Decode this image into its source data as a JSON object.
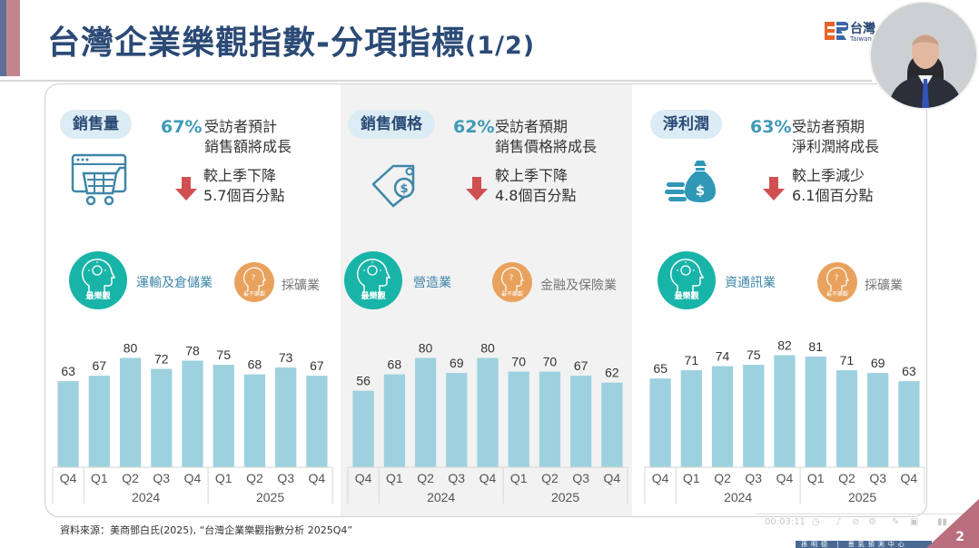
{
  "header": {
    "title": "台灣企業樂觀指數-分項指標",
    "title_suffix": "(1/2)",
    "logo_text": "台灣",
    "logo_sub": "Taiwan"
  },
  "panels": [
    {
      "pill": "銷售量",
      "pct": "67%",
      "pct_desc_line1": "受訪者預計",
      "pct_desc_line2": "銷售額將成長",
      "change_line1": "較上季下降",
      "change_line2": "5.7個百分點",
      "icon": "shopping-cart-icon",
      "optimistic_badge": "最樂觀",
      "optimistic_industry": "運輸及倉儲業",
      "pessimistic_badge": "最不樂觀",
      "pessimistic_industry": "採礦業"
    },
    {
      "pill": "銷售價格",
      "pct": "62%",
      "pct_desc_line1": "受訪者預期",
      "pct_desc_line2": "銷售價格將成長",
      "change_line1": "較上季下降",
      "change_line2": "4.8個百分點",
      "icon": "price-tag-icon",
      "optimistic_badge": "最樂觀",
      "optimistic_industry": "營造業",
      "pessimistic_badge": "最不樂觀",
      "pessimistic_industry": "金融及保險業"
    },
    {
      "pill": "淨利潤",
      "pct": "63%",
      "pct_desc_line1": "受訪者預期",
      "pct_desc_line2": "淨利潤將成長",
      "change_line1": "較上季減少",
      "change_line2": "6.1個百分點",
      "icon": "money-bag-icon",
      "optimistic_badge": "最樂觀",
      "optimistic_industry": "資通訊業",
      "pessimistic_badge": "最不樂觀",
      "pessimistic_industry": "採礦業"
    }
  ],
  "chart_data": [
    {
      "type": "bar",
      "title": "銷售量",
      "categories": [
        "Q4",
        "Q1",
        "Q2",
        "Q3",
        "Q4",
        "Q1",
        "Q2",
        "Q3",
        "Q4"
      ],
      "groups": [
        {
          "label": "",
          "span": 1
        },
        {
          "label": "2024",
          "span": 4
        },
        {
          "label": "2025",
          "span": 4
        }
      ],
      "values": [
        63,
        67,
        80,
        72,
        78,
        75,
        68,
        73,
        67
      ],
      "ylim": [
        0,
        85
      ],
      "color": "#9ed1df"
    },
    {
      "type": "bar",
      "title": "銷售價格",
      "categories": [
        "Q4",
        "Q1",
        "Q2",
        "Q3",
        "Q4",
        "Q1",
        "Q2",
        "Q3",
        "Q4"
      ],
      "groups": [
        {
          "label": "",
          "span": 1
        },
        {
          "label": "2024",
          "span": 4
        },
        {
          "label": "2025",
          "span": 4
        }
      ],
      "values": [
        56,
        68,
        80,
        69,
        80,
        70,
        70,
        67,
        62
      ],
      "ylim": [
        0,
        85
      ],
      "color": "#9ed1df"
    },
    {
      "type": "bar",
      "title": "淨利潤",
      "categories": [
        "Q4",
        "Q1",
        "Q2",
        "Q3",
        "Q4",
        "Q1",
        "Q2",
        "Q3",
        "Q4"
      ],
      "groups": [
        {
          "label": "",
          "span": 1
        },
        {
          "label": "2024",
          "span": 4
        },
        {
          "label": "2025",
          "span": 4
        }
      ],
      "values": [
        65,
        71,
        74,
        75,
        82,
        81,
        71,
        69,
        63
      ],
      "ylim": [
        0,
        85
      ],
      "color": "#9ed1df"
    }
  ],
  "footer": {
    "source": "資料來源：美商鄧白氏(2025), “台灣企業樂觀指數分析 2025Q4”",
    "recorder_time": "00:03:11",
    "presenter_bar": "孫明德 | 景氣預測中心",
    "page_number": "2"
  }
}
